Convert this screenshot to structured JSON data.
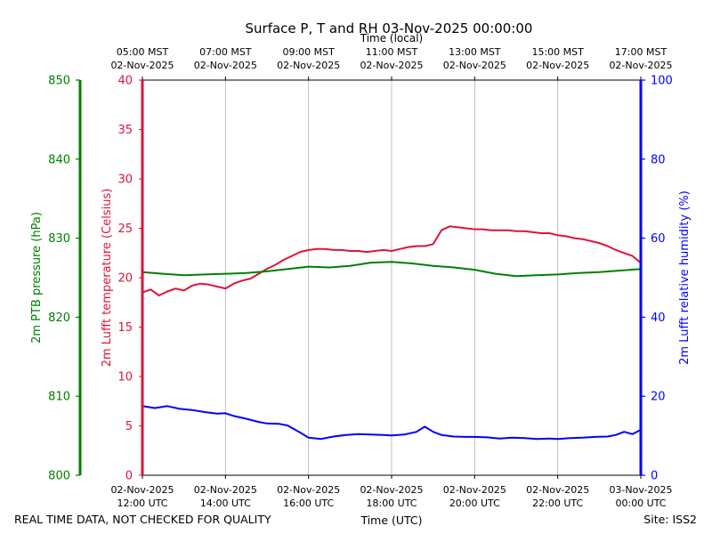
{
  "chart_data": {
    "type": "line",
    "title": "Surface P, T and RH 03-Nov-2025 00:00:00",
    "top_axis_label": "Time (local)",
    "top_ticks": [
      {
        "l1": "05:00 MST",
        "l2": "02-Nov-2025"
      },
      {
        "l1": "07:00 MST",
        "l2": "02-Nov-2025"
      },
      {
        "l1": "09:00 MST",
        "l2": "02-Nov-2025"
      },
      {
        "l1": "11:00 MST",
        "l2": "02-Nov-2025"
      },
      {
        "l1": "13:00 MST",
        "l2": "02-Nov-2025"
      },
      {
        "l1": "15:00 MST",
        "l2": "02-Nov-2025"
      },
      {
        "l1": "17:00 MST",
        "l2": "02-Nov-2025"
      }
    ],
    "bottom_ticks": [
      {
        "l1": "02-Nov-2025",
        "l2": "12:00 UTC"
      },
      {
        "l1": "02-Nov-2025",
        "l2": "14:00 UTC"
      },
      {
        "l1": "02-Nov-2025",
        "l2": "16:00 UTC"
      },
      {
        "l1": "02-Nov-2025",
        "l2": "18:00 UTC"
      },
      {
        "l1": "02-Nov-2025",
        "l2": "20:00 UTC"
      },
      {
        "l1": "02-Nov-2025",
        "l2": "22:00 UTC"
      },
      {
        "l1": "03-Nov-2025",
        "l2": "00:00 UTC"
      }
    ],
    "xlabel": "Time (UTC)",
    "xlim_hours_utc": [
      12,
      24
    ],
    "axes": {
      "temperature": {
        "label": "2m Lufft temperature (Celsius)",
        "ylim": [
          0,
          40
        ],
        "ticks": [
          "0",
          "5",
          "10",
          "15",
          "20",
          "25",
          "30",
          "35",
          "40"
        ],
        "color": "#dc143c"
      },
      "pressure": {
        "label": "2m PTB pressure (hPa)",
        "ylim": [
          800,
          850
        ],
        "ticks": [
          "800",
          "810",
          "820",
          "830",
          "840",
          "850"
        ],
        "color": "#008000"
      },
      "humidity": {
        "label": "2m Lufft relative humidity (%)",
        "ylim": [
          0,
          100
        ],
        "ticks": [
          "0",
          "20",
          "40",
          "60",
          "80",
          "100"
        ],
        "color": "#0000ff"
      }
    },
    "series": [
      {
        "name": "temperature",
        "axis": "temperature",
        "color": "#dc143c",
        "x": [
          12.0,
          12.2,
          12.4,
          12.6,
          12.8,
          13.0,
          13.2,
          13.4,
          13.6,
          13.8,
          14.0,
          14.2,
          14.4,
          14.6,
          14.8,
          15.0,
          15.2,
          15.4,
          15.6,
          15.8,
          16.0,
          16.2,
          16.4,
          16.6,
          16.8,
          17.0,
          17.2,
          17.4,
          17.6,
          17.8,
          18.0,
          18.2,
          18.4,
          18.6,
          18.8,
          19.0,
          19.2,
          19.4,
          19.6,
          19.8,
          20.0,
          20.2,
          20.4,
          20.6,
          20.8,
          21.0,
          21.2,
          21.4,
          21.6,
          21.8,
          22.0,
          22.2,
          22.4,
          22.6,
          22.8,
          23.0,
          23.2,
          23.4,
          23.6,
          23.8,
          24.0
        ],
        "values": [
          18.5,
          18.8,
          18.2,
          18.6,
          18.9,
          18.7,
          19.2,
          19.4,
          19.3,
          19.1,
          18.9,
          19.4,
          19.7,
          19.9,
          20.4,
          20.9,
          21.3,
          21.8,
          22.2,
          22.6,
          22.8,
          22.9,
          22.9,
          22.8,
          22.8,
          22.7,
          22.7,
          22.6,
          22.7,
          22.8,
          22.7,
          22.9,
          23.1,
          23.2,
          23.2,
          23.4,
          24.8,
          25.2,
          25.1,
          25.0,
          24.9,
          24.9,
          24.8,
          24.8,
          24.8,
          24.7,
          24.7,
          24.6,
          24.5,
          24.5,
          24.3,
          24.2,
          24.0,
          23.9,
          23.7,
          23.5,
          23.2,
          22.8,
          22.5,
          22.2,
          21.5
        ]
      },
      {
        "name": "pressure",
        "axis": "pressure",
        "color": "#008000",
        "x": [
          12.0,
          12.5,
          13.0,
          13.5,
          14.0,
          14.5,
          15.0,
          15.5,
          16.0,
          16.5,
          17.0,
          17.5,
          18.0,
          18.5,
          19.0,
          19.5,
          20.0,
          20.5,
          21.0,
          21.5,
          22.0,
          22.5,
          23.0,
          23.5,
          24.0
        ],
        "values": [
          825.7,
          825.5,
          825.3,
          825.4,
          825.5,
          825.6,
          825.8,
          826.1,
          826.4,
          826.3,
          826.5,
          826.9,
          827.0,
          826.8,
          826.5,
          826.3,
          826.0,
          825.5,
          825.2,
          825.3,
          825.4,
          825.6,
          825.7,
          825.9,
          826.1
        ]
      },
      {
        "name": "humidity",
        "axis": "humidity",
        "color": "#0000ff",
        "x": [
          12.0,
          12.3,
          12.6,
          12.9,
          13.2,
          13.5,
          13.8,
          14.0,
          14.2,
          14.5,
          14.8,
          15.0,
          15.3,
          15.5,
          15.8,
          16.0,
          16.3,
          16.6,
          16.9,
          17.2,
          17.5,
          17.8,
          18.0,
          18.3,
          18.6,
          18.8,
          19.0,
          19.2,
          19.5,
          19.8,
          20.0,
          20.3,
          20.6,
          20.9,
          21.2,
          21.5,
          21.8,
          22.0,
          22.3,
          22.6,
          22.9,
          23.2,
          23.4,
          23.6,
          23.8,
          24.0
        ],
        "values": [
          17.5,
          17.0,
          17.5,
          16.8,
          16.5,
          16.0,
          15.6,
          15.7,
          15.0,
          14.3,
          13.5,
          13.1,
          13.0,
          12.6,
          10.8,
          9.5,
          9.2,
          9.8,
          10.2,
          10.4,
          10.3,
          10.2,
          10.1,
          10.3,
          11.0,
          12.3,
          11.0,
          10.2,
          9.8,
          9.7,
          9.7,
          9.6,
          9.3,
          9.5,
          9.4,
          9.2,
          9.3,
          9.2,
          9.4,
          9.5,
          9.7,
          9.8,
          10.2,
          11.0,
          10.4,
          11.5
        ]
      }
    ]
  },
  "footer": {
    "left": "REAL TIME DATA, NOT CHECKED FOR QUALITY",
    "right": "Site: ISS2"
  }
}
